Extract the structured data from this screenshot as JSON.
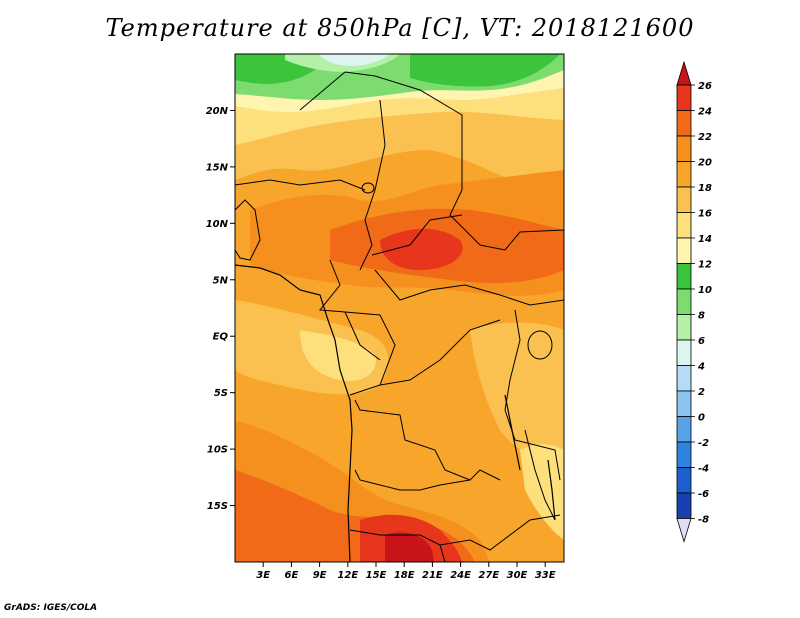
{
  "title": "Temperature at 850hPa [C], VT: 2018121600",
  "credit": "GrADS: IGES/COLA",
  "map": {
    "lon_range": [
      0,
      35
    ],
    "lat_range": [
      -20,
      25
    ],
    "lat_ticks": [
      {
        "value": 20,
        "label": "20N"
      },
      {
        "value": 15,
        "label": "15N"
      },
      {
        "value": 10,
        "label": "10N"
      },
      {
        "value": 5,
        "label": "5N"
      },
      {
        "value": 0,
        "label": "EQ"
      },
      {
        "value": -5,
        "label": "5S"
      },
      {
        "value": -10,
        "label": "10S"
      },
      {
        "value": -15,
        "label": "15S"
      }
    ],
    "lon_ticks": [
      {
        "value": 3,
        "label": "3E"
      },
      {
        "value": 6,
        "label": "6E"
      },
      {
        "value": 9,
        "label": "9E"
      },
      {
        "value": 12,
        "label": "12E"
      },
      {
        "value": 15,
        "label": "15E"
      },
      {
        "value": 18,
        "label": "18E"
      },
      {
        "value": 21,
        "label": "21E"
      },
      {
        "value": 24,
        "label": "24E"
      },
      {
        "value": 27,
        "label": "27E"
      },
      {
        "value": 30,
        "label": "30E"
      },
      {
        "value": 33,
        "label": "33E"
      }
    ]
  },
  "colorbar": {
    "levels": [
      {
        "label": "26",
        "color": "#e8361c"
      },
      {
        "label": "24",
        "color": "#f06a18"
      },
      {
        "label": "22",
        "color": "#f5901e"
      },
      {
        "label": "20",
        "color": "#f8a52c"
      },
      {
        "label": "18",
        "color": "#fbc150"
      },
      {
        "label": "16",
        "color": "#fde07c"
      },
      {
        "label": "14",
        "color": "#fff4b0"
      },
      {
        "label": "12",
        "color": "#3cc43c"
      },
      {
        "label": "10",
        "color": "#7ddc70"
      },
      {
        "label": "8",
        "color": "#b4f0a8"
      },
      {
        "label": "6",
        "color": "#dcf5f0"
      },
      {
        "label": "4",
        "color": "#b4dcf6"
      },
      {
        "label": "2",
        "color": "#8cc4f0"
      },
      {
        "label": "0",
        "color": "#5aa2e8"
      },
      {
        "label": "-2",
        "color": "#2f84e0"
      },
      {
        "label": "-4",
        "color": "#1c60d0"
      },
      {
        "label": "-6",
        "color": "#1840b0"
      },
      {
        "label": "-8",
        "color": "#101c78"
      }
    ],
    "top_color": "#c8141a",
    "bottom_color": "#e0e0f5"
  }
}
